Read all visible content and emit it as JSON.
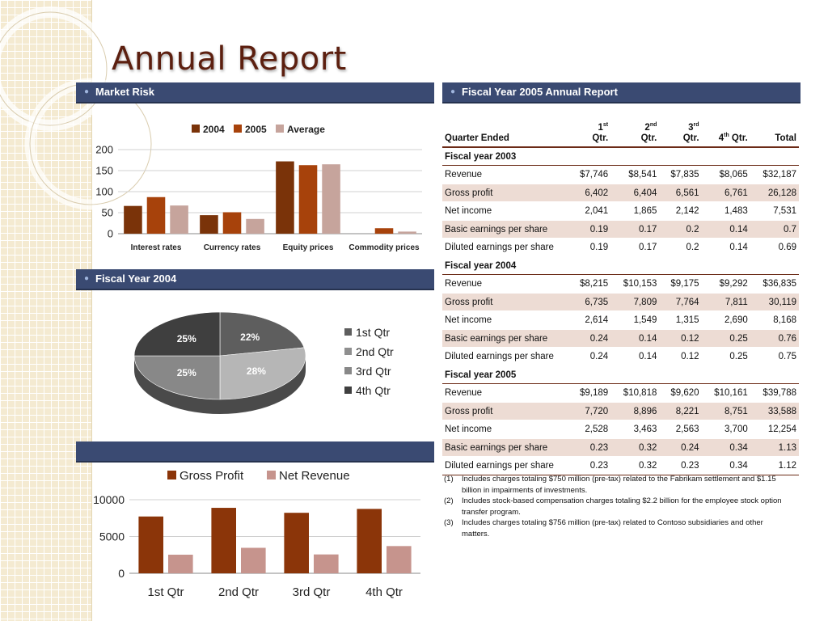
{
  "title": "Annual Report",
  "sections": {
    "market_risk": "Market Risk",
    "fiscal_2004": "Fiscal Year 2004",
    "fiscal_2005_report": "Fiscal Year 2005 Annual Report",
    "blank": ""
  },
  "chart_data": [
    {
      "type": "bar",
      "categories": [
        "Interest rates",
        "Currency rates",
        "Equity prices",
        "Commodity prices"
      ],
      "series": [
        {
          "name": "2004",
          "values": [
            66,
            44,
            172,
            0
          ],
          "color": "#7a3309"
        },
        {
          "name": "2005",
          "values": [
            87,
            51,
            163,
            13
          ],
          "color": "#a7420b"
        },
        {
          "name": "Average",
          "values": [
            67,
            35,
            165,
            5
          ],
          "color": "#c6a49c"
        }
      ],
      "yticks": [
        0,
        50,
        100,
        150,
        200
      ],
      "ylim": [
        0,
        200
      ],
      "grid": true,
      "legend": "top"
    },
    {
      "type": "pie",
      "labels": [
        "1st Qtr",
        "2nd Qtr",
        "3rd Qtr",
        "4th Qtr"
      ],
      "values": [
        22,
        28,
        25,
        25
      ],
      "value_labels": [
        "22%",
        "28%",
        "25%",
        "25%"
      ],
      "colors": [
        "#5e5e5e",
        "#b6b6b6",
        "#888888",
        "#3f3f3f"
      ],
      "legend": "right"
    },
    {
      "type": "bar",
      "categories": [
        "1st Qtr",
        "2nd Qtr",
        "3rd Qtr",
        "4th Qtr"
      ],
      "series": [
        {
          "name": "Gross Profit",
          "values": [
            7720,
            8896,
            8221,
            8751
          ],
          "color": "#8b3509"
        },
        {
          "name": "Net Revenue",
          "values": [
            2528,
            3463,
            2563,
            3700
          ],
          "color": "#c6948d"
        }
      ],
      "yticks": [
        0,
        5000,
        10000
      ],
      "ylim": [
        0,
        10000
      ],
      "grid": true,
      "legend": "top"
    }
  ],
  "table": {
    "headers": [
      {
        "main": "Quarter Ended"
      },
      {
        "top": "1",
        "sup": "st",
        "main": "Qtr."
      },
      {
        "top": "2",
        "sup": "nd",
        "main": "Qtr."
      },
      {
        "top": "3",
        "sup": "rd",
        "main": "Qtr."
      },
      {
        "top": "",
        "sup": "",
        "main": "4",
        "msup": "th",
        "mrest": " Qtr."
      },
      {
        "main": "Total"
      }
    ],
    "sections": [
      {
        "label": "Fiscal year 2003",
        "rows": [
          [
            "Revenue",
            "$7,746",
            "$8,541",
            "$7,835",
            "$8,065",
            "$32,187"
          ],
          [
            "Gross profit",
            "6,402",
            "6,404",
            "6,561",
            "6,761",
            "26,128"
          ],
          [
            "Net income",
            "2,041",
            "1,865",
            "2,142",
            "1,483",
            "7,531"
          ],
          [
            "Basic earnings per share",
            "0.19",
            "0.17",
            "0.2",
            "0.14",
            "0.7"
          ],
          [
            "Diluted earnings per share",
            "0.19",
            "0.17",
            "0.2",
            "0.14",
            "0.69"
          ]
        ]
      },
      {
        "label": "Fiscal year 2004",
        "rows": [
          [
            "Revenue",
            "$8,215",
            "$10,153",
            "$9,175",
            "$9,292",
            "$36,835"
          ],
          [
            "Gross profit",
            "6,735",
            "7,809",
            "7,764",
            "7,811",
            "30,119"
          ],
          [
            "Net income",
            "2,614",
            "1,549",
            "1,315",
            "2,690",
            "8,168"
          ],
          [
            "Basic earnings per share",
            "0.24",
            "0.14",
            "0.12",
            "0.25",
            "0.76"
          ],
          [
            "Diluted earnings per share",
            "0.24",
            "0.14",
            "0.12",
            "0.25",
            "0.75"
          ]
        ]
      },
      {
        "label": "Fiscal year 2005",
        "rows": [
          [
            "Revenue",
            "$9,189",
            "$10,818",
            "$9,620",
            "$10,161",
            "$39,788"
          ],
          [
            "Gross profit",
            "7,720",
            "8,896",
            "8,221",
            "8,751",
            "33,588"
          ],
          [
            "Net income",
            "2,528",
            "3,463",
            "2,563",
            "3,700",
            "12,254"
          ],
          [
            "Basic earnings per share",
            "0.23",
            "0.32",
            "0.24",
            "0.34",
            "1.13"
          ],
          [
            "Diluted earnings per share",
            "0.23",
            "0.32",
            "0.23",
            "0.34",
            "1.12"
          ]
        ]
      }
    ]
  },
  "notes": [
    {
      "marker": "(1)",
      "text": "Includes charges totaling $750 million (pre-tax) related to the Fabrikam settlement and $1.15 billion in impairments of investments."
    },
    {
      "marker": "(2)",
      "text": "Includes stock-based compensation charges totaling $2.2 billion for the employee stock option transfer program."
    },
    {
      "marker": "(3)",
      "text": "Includes charges totaling $756 million (pre-tax) related to Contoso subsidiaries and other matters."
    }
  ]
}
